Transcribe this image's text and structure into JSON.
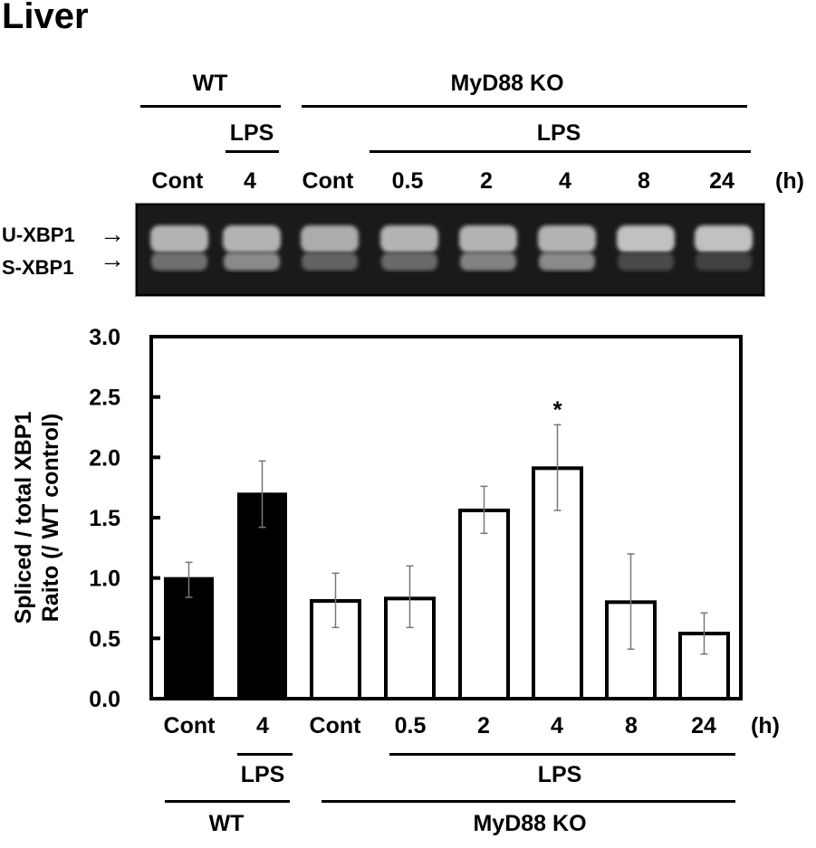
{
  "figure": {
    "title": "Liver",
    "top_labels": {
      "group_wt": "WT",
      "group_ko": "MyD88 KO",
      "lps_wt": "LPS",
      "lps_ko": "LPS",
      "lanes": [
        "Cont",
        "4",
        "Cont",
        "0.5",
        "2",
        "4",
        "8",
        "24"
      ],
      "unit": "(h)"
    },
    "gel": {
      "band_upper_label": "U-XBP1",
      "band_lower_label": "S-XBP1",
      "arrow_glyph": "→",
      "lanes": [
        {
          "lane": "WT Cont",
          "u_intensity": 0.85,
          "s_intensity": 0.55
        },
        {
          "lane": "WT LPS 4",
          "u_intensity": 0.85,
          "s_intensity": 0.75
        },
        {
          "lane": "KO Cont",
          "u_intensity": 0.8,
          "s_intensity": 0.45
        },
        {
          "lane": "KO 0.5",
          "u_intensity": 0.85,
          "s_intensity": 0.5
        },
        {
          "lane": "KO 2",
          "u_intensity": 0.85,
          "s_intensity": 0.7
        },
        {
          "lane": "KO 4",
          "u_intensity": 0.85,
          "s_intensity": 0.75
        },
        {
          "lane": "KO 8",
          "u_intensity": 0.95,
          "s_intensity": 0.25
        },
        {
          "lane": "KO 24",
          "u_intensity": 0.95,
          "s_intensity": 0.2
        }
      ]
    },
    "bottom_labels": {
      "lanes": [
        "Cont",
        "4",
        "Cont",
        "0.5",
        "2",
        "4",
        "8",
        "24"
      ],
      "unit": "(h)",
      "lps_wt": "LPS",
      "lps_ko": "LPS",
      "group_wt": "WT",
      "group_ko": "MyD88 KO"
    },
    "significance_marker": "*"
  },
  "chart_data": {
    "type": "bar",
    "title": "Liver",
    "xlabel": "",
    "ylabel": "Spliced / total XBP1 Raito (/ WT control)",
    "ylabel_line1": "Spliced / total XBP1",
    "ylabel_line2": "Raito (/ WT control)",
    "ylim": [
      0,
      3.0
    ],
    "yticks": [
      "0.0",
      "0.5",
      "1.0",
      "1.5",
      "2.0",
      "2.5",
      "3.0"
    ],
    "grid": false,
    "categories": [
      "Cont",
      "4",
      "Cont",
      "0.5",
      "2",
      "4",
      "8",
      "24"
    ],
    "groups": [
      "WT",
      "WT",
      "MyD88 KO",
      "MyD88 KO",
      "MyD88 KO",
      "MyD88 KO",
      "MyD88 KO",
      "MyD88 KO"
    ],
    "treatment": [
      "Cont",
      "LPS",
      "Cont",
      "LPS",
      "LPS",
      "LPS",
      "LPS",
      "LPS"
    ],
    "values": [
      1.0,
      1.7,
      0.81,
      0.83,
      1.56,
      1.91,
      0.8,
      0.54
    ],
    "error_low": [
      0.84,
      1.42,
      0.59,
      0.59,
      1.37,
      1.56,
      0.41,
      0.37
    ],
    "error_high": [
      1.13,
      1.97,
      1.04,
      1.1,
      1.76,
      2.27,
      1.2,
      0.71
    ],
    "fills": [
      "#000000",
      "#000000",
      "#ffffff",
      "#ffffff",
      "#ffffff",
      "#ffffff",
      "#ffffff",
      "#ffffff"
    ],
    "significant": [
      false,
      false,
      false,
      false,
      false,
      true,
      false,
      false
    ],
    "annotations": [
      {
        "category_index": 5,
        "text": "*"
      }
    ],
    "x_unit": "(h)"
  }
}
